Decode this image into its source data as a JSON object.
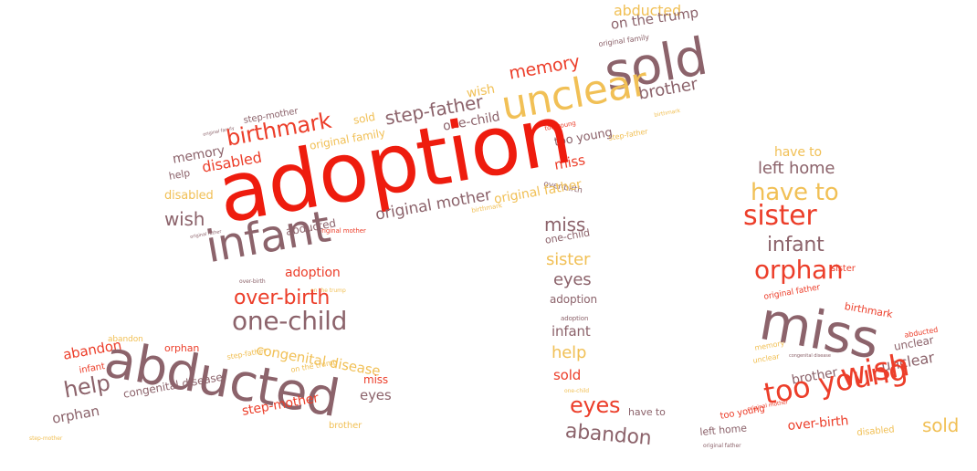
{
  "palette": {
    "yellow": "#f1c056",
    "red": "#ec3e2a",
    "mauve": "#8c636b",
    "bright_red": "#ee1c0e"
  },
  "words": [
    "abducted",
    "on the trump",
    "original family",
    "sold",
    "brother",
    "memory",
    "wish",
    "unclear",
    "original family",
    "step-mother",
    "sold",
    "step-father",
    "one-child",
    "too young",
    "step-father",
    "too young",
    "memory",
    "birthmark",
    "original family",
    "help",
    "disabled",
    "miss",
    "adoption",
    "over-birth",
    "original father",
    "disabled",
    "wish",
    "original mother",
    "birthmark",
    "original mother",
    "miss",
    "original father",
    "one-child",
    "infant",
    "abducted",
    "adoption",
    "over-birth",
    "on the trump",
    "over-birth",
    "one-child",
    "sister",
    "eyes",
    "adoption",
    "adoption",
    "congenital disease",
    "infant",
    "orphan",
    "abandon",
    "abandon",
    "infant",
    "help",
    "step-father",
    "on the trump",
    "abducted",
    "miss",
    "help",
    "congenital disease",
    "eyes",
    "orphan",
    "step-mother",
    "brother",
    "step-mother",
    "sold",
    "one-child",
    "eyes",
    "have to",
    "abandon",
    "have to",
    "left home",
    "have to",
    "sister",
    "infant",
    "orphan",
    "sister",
    "original father",
    "birthmark",
    "miss",
    "abducted",
    "unclear",
    "memory",
    "unclear",
    "congenital disease",
    "unclear",
    "brother",
    "wish",
    "too young",
    "original mother",
    "too young",
    "sold",
    "over-birth",
    "disabled",
    "left home",
    "original father"
  ]
}
